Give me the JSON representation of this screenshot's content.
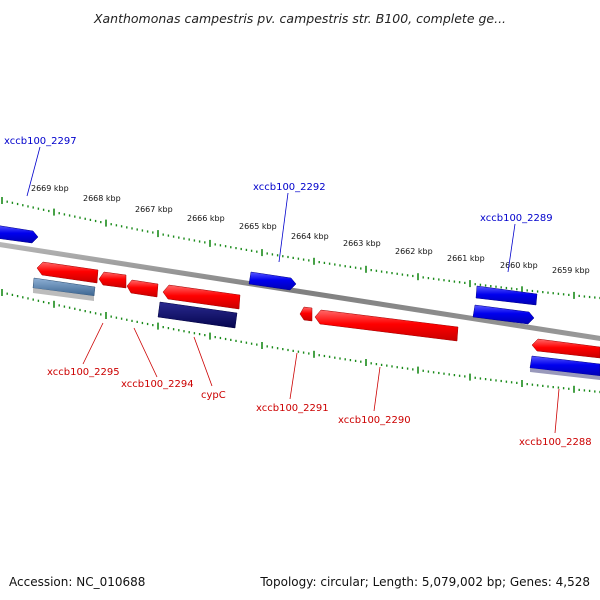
{
  "title": "Xanthomonas campestris pv. campestris str. B100, complete ge...",
  "footer": {
    "accession": "Accession: NC_010688",
    "summary": "Topology: circular; Length: 5,079,002 bp; Genes: 4,528"
  },
  "colors": {
    "forward": "#ff0000",
    "forward_label": "#cc0000",
    "reverse": "#0000ee",
    "reverse_label": "#0000cc",
    "navy": "#0a0a6e",
    "steel": "#5f84aa",
    "backbone": "#888888",
    "tick": "#1a8a1a"
  },
  "scale_labels": [
    "2669 kbp",
    "2668 kbp",
    "2667 kbp",
    "2666 kbp",
    "2665 kbp",
    "2664 kbp",
    "2663 kbp",
    "2662 kbp",
    "2661 kbp",
    "2660 kbp",
    "2659 kbp"
  ],
  "gene_labels": [
    {
      "text": "xccb100_2297",
      "strand": "reverse"
    },
    {
      "text": "xccb100_2292",
      "strand": "reverse"
    },
    {
      "text": "xccb100_2289",
      "strand": "reverse"
    },
    {
      "text": "xccb100_2295",
      "strand": "forward"
    },
    {
      "text": "xccb100_2294",
      "strand": "forward"
    },
    {
      "text": "cypC",
      "strand": "forward"
    },
    {
      "text": "xccb100_2291",
      "strand": "forward"
    },
    {
      "text": "xccb100_2290",
      "strand": "forward"
    },
    {
      "text": "xccb100_2288",
      "strand": "forward"
    }
  ]
}
